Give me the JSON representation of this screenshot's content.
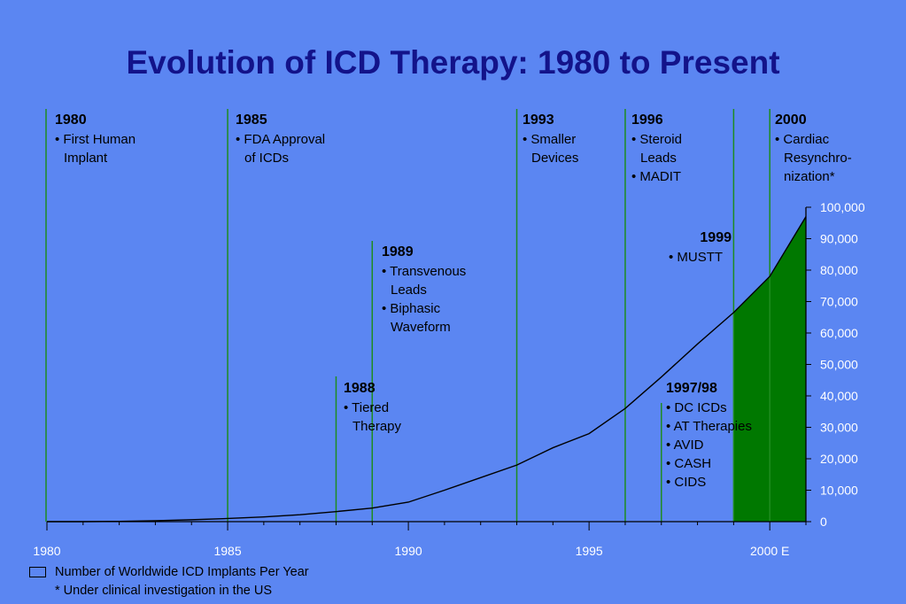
{
  "chart_data": {
    "type": "area",
    "title": "Evolution of ICD Therapy:  1980 to Present",
    "x": [
      1980,
      1981,
      1982,
      1983,
      1984,
      1985,
      1986,
      1987,
      1988,
      1989,
      1990,
      1991,
      1992,
      1993,
      1994,
      1995,
      1996,
      1997,
      1998,
      1999,
      2000,
      2001
    ],
    "y": [
      0,
      0,
      100,
      300,
      600,
      1000,
      1500,
      2200,
      3200,
      4300,
      6200,
      10000,
      14000,
      18000,
      23500,
      28000,
      36000,
      46000,
      56500,
      66500,
      78000,
      97000
    ],
    "series": [
      {
        "name": "Number of Worldwide ICD Implants Per Year"
      }
    ],
    "shaded_region": {
      "from": 1999,
      "to": 2001,
      "color": "#007800"
    },
    "xlim": [
      1980,
      2001
    ],
    "ylim": [
      0,
      100000
    ],
    "x_tick_labels": [
      {
        "value": 1980,
        "label": "1980"
      },
      {
        "value": 1985,
        "label": "1985"
      },
      {
        "value": 1990,
        "label": "1990"
      },
      {
        "value": 1995,
        "label": "1995"
      },
      {
        "value": 2000,
        "label": "2000 E"
      }
    ],
    "y_tick_labels": [
      "0",
      "10,000",
      "20,000",
      "30,000",
      "40,000",
      "50,000",
      "60,000",
      "70,000",
      "80,000",
      "90,000",
      "100,000"
    ],
    "y_ticks": [
      0,
      10000,
      20000,
      30000,
      40000,
      50000,
      60000,
      70000,
      80000,
      90000,
      100000
    ],
    "milestones": [
      {
        "x": 1980,
        "year": "1980",
        "lines": [
          "• First Human",
          "Implant"
        ]
      },
      {
        "x": 1985,
        "year": "1985",
        "lines": [
          "• FDA Approval",
          "of ICDs"
        ]
      },
      {
        "x": 1988,
        "year": "1988",
        "lines": [
          "• Tiered",
          "Therapy"
        ]
      },
      {
        "x": 1989,
        "year": "1989",
        "lines": [
          "• Transvenous",
          "Leads",
          "• Biphasic",
          "Waveform"
        ]
      },
      {
        "x": 1993,
        "year": "1993",
        "lines": [
          "• Smaller",
          "Devices"
        ]
      },
      {
        "x": 1996,
        "year": "1996",
        "lines": [
          "• Steroid",
          "Leads",
          "• MADIT"
        ]
      },
      {
        "x": 1997,
        "year": "1997/98",
        "lines": [
          "• DC ICDs",
          "• AT Therapies",
          "• AVID",
          "• CASH",
          "• CIDS"
        ]
      },
      {
        "x": 1999,
        "year": "1999",
        "lines": [
          "• MUSTT"
        ]
      },
      {
        "x": 2000,
        "year": "2000",
        "lines": [
          "• Cardiac",
          "Resynchro-",
          "nization*"
        ]
      }
    ],
    "colors": {
      "background": "#5b86f2",
      "title": "#13138a",
      "milestone_line": "#1f8c1f",
      "fill": "#007800",
      "curve": "#000000",
      "tick_label": "#ffffff"
    }
  },
  "legend_label": "Number of Worldwide ICD Implants Per Year",
  "footnote": "* Under clinical investigation in the US"
}
